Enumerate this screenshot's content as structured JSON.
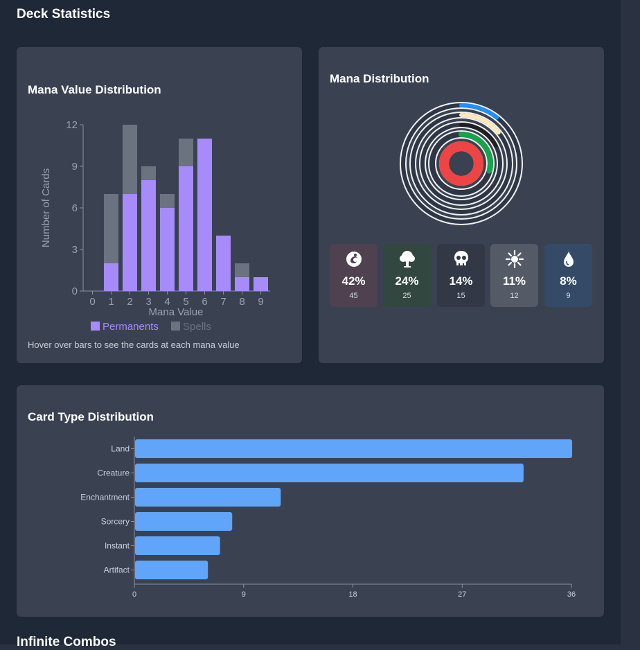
{
  "page": {
    "title": "Deck Statistics",
    "next_section": "Infinite Combos"
  },
  "mana_value_panel": {
    "title": "Mana Value Distribution",
    "hint": "Hover over bars to see the cards at each mana value"
  },
  "mana_distribution_panel": {
    "title": "Mana Distribution",
    "stats": [
      {
        "icon": "swirl-icon",
        "percent": "42%",
        "count": "45",
        "bg": "#4f4150"
      },
      {
        "icon": "tree-icon",
        "percent": "24%",
        "count": "25",
        "bg": "#32473f"
      },
      {
        "icon": "skull-icon",
        "percent": "14%",
        "count": "15",
        "bg": "#323846"
      },
      {
        "icon": "sun-icon",
        "percent": "11%",
        "count": "12",
        "bg": "#555b66"
      },
      {
        "icon": "drop-icon",
        "percent": "8%",
        "count": "9",
        "bg": "#344a67"
      }
    ]
  },
  "card_type_panel": {
    "title": "Card Type Distribution"
  },
  "chart_data": [
    {
      "type": "bar",
      "stacked": true,
      "xlabel": "Mana Value",
      "ylabel": "Number of Cards",
      "categories": [
        "0",
        "1",
        "2",
        "3",
        "4",
        "5",
        "6",
        "7",
        "8",
        "9"
      ],
      "ylim": [
        0,
        12
      ],
      "yticks": [
        0,
        3,
        6,
        9,
        12
      ],
      "series": [
        {
          "name": "Permanents",
          "color": "#a78bfa",
          "values": [
            0,
            2,
            7,
            8,
            6,
            9,
            11,
            4,
            1,
            1
          ]
        },
        {
          "name": "Spells",
          "color": "#6b7280",
          "values": [
            0,
            5,
            5,
            1,
            1,
            2,
            0,
            0,
            1,
            0
          ]
        }
      ],
      "legend": "bottom"
    },
    {
      "type": "pie",
      "style": "concentric-rings",
      "labels": [
        "Red",
        "Green",
        "Black",
        "White",
        "Blue"
      ],
      "values": [
        45,
        25,
        15,
        12,
        9
      ],
      "colors": [
        "#ef4444",
        "#16a34a",
        "#1f1f24",
        "#fde9b8",
        "#1e90ff"
      ]
    },
    {
      "type": "bar",
      "orientation": "horizontal",
      "categories": [
        "Land",
        "Creature",
        "Enchantment",
        "Sorcery",
        "Instant",
        "Artifact"
      ],
      "values": [
        36,
        32,
        12,
        8,
        7,
        6
      ],
      "xlim": [
        0,
        36
      ],
      "xticks": [
        0,
        9,
        18,
        27,
        36
      ],
      "color": "#60a5fa"
    }
  ]
}
